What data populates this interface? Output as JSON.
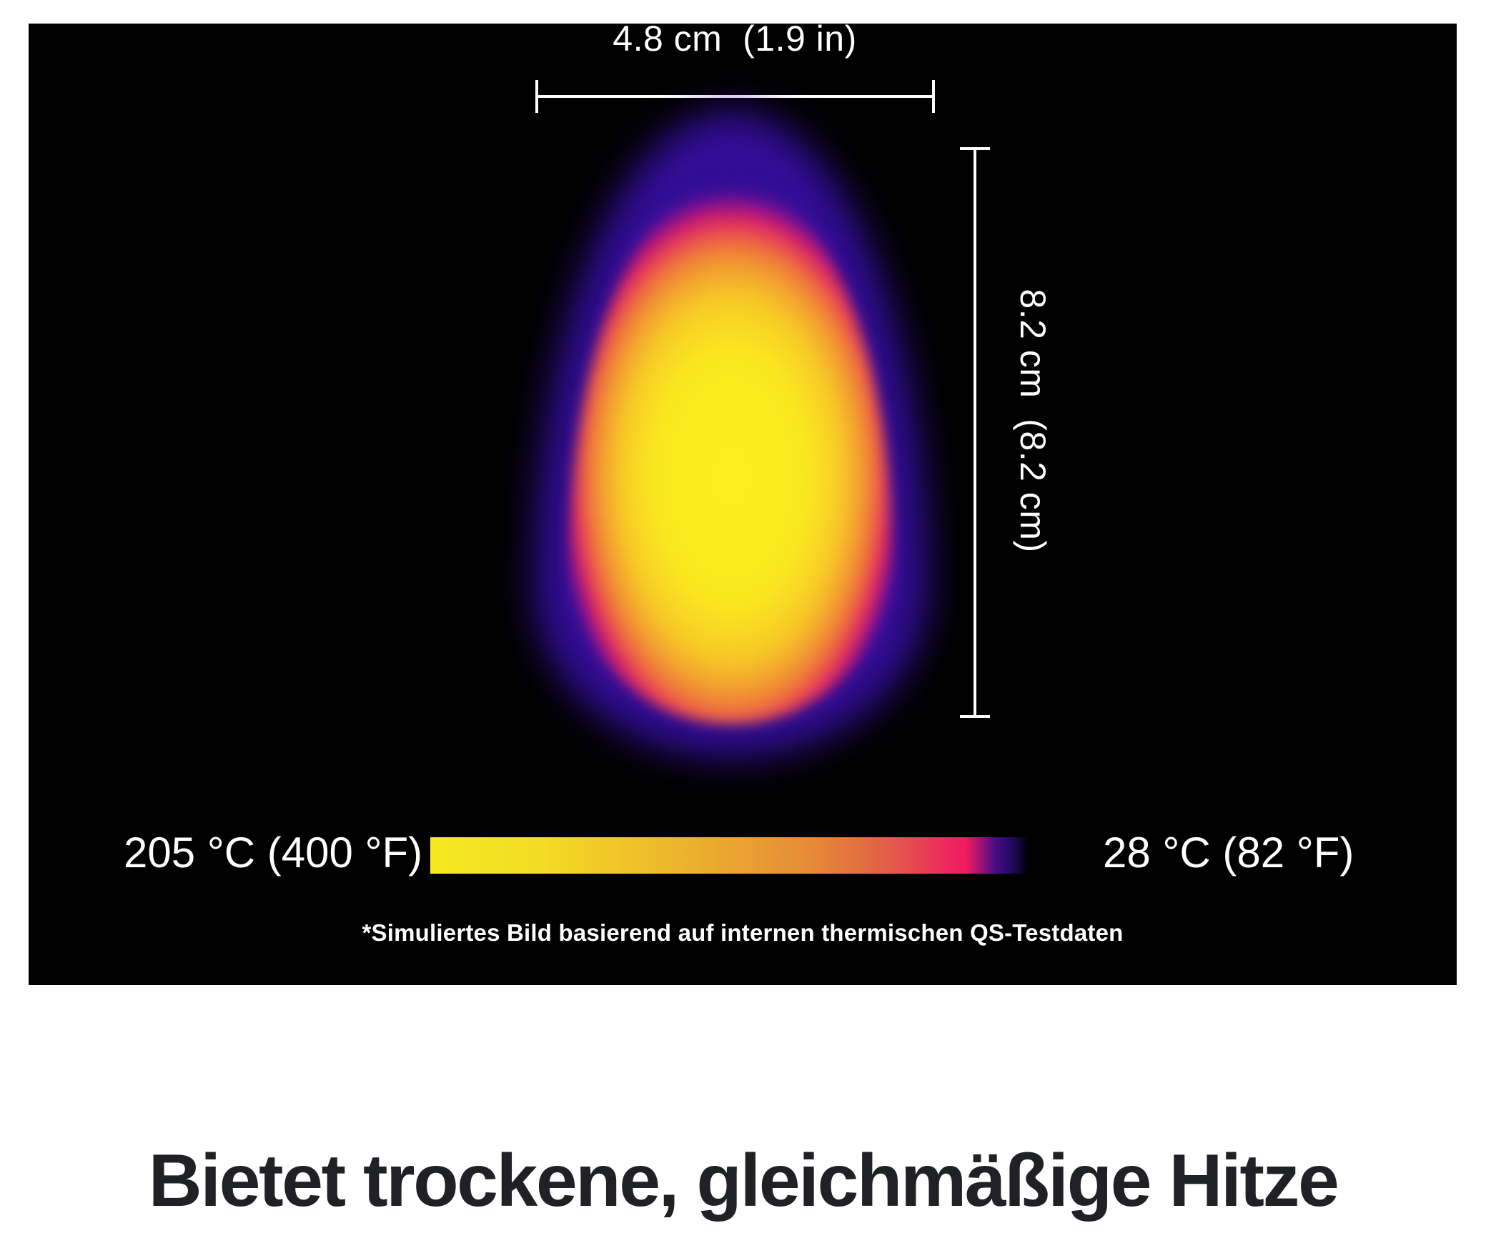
{
  "measurements": {
    "width_label": "4.8 cm  (1.9 in)",
    "height_label": "8.2 cm  (8.2 cm)",
    "width_cm": 4.8,
    "width_in": 1.9,
    "height_cm": 8.2
  },
  "temperature_scale": {
    "hot_label": "205 °C (400 °F)",
    "cold_label": "28 °C (82 °F)",
    "hot_celsius": 205,
    "hot_fahrenheit": 400,
    "cold_celsius": 28,
    "cold_fahrenheit": 82
  },
  "footnote": "*Simuliertes Bild basierend auf internen thermischen QS-Testdaten",
  "headline": "Bietet trockene, gleichmäßige Hitze",
  "colors": {
    "panel_background": "#000000",
    "label_text": "#ffffff",
    "headline_text": "#202124",
    "thermal_hot_core": "#f9e81f",
    "thermal_mid_orange": "#f2962f",
    "thermal_warm_magenta": "#e7315c",
    "thermal_cool_purple": "#35109a"
  }
}
